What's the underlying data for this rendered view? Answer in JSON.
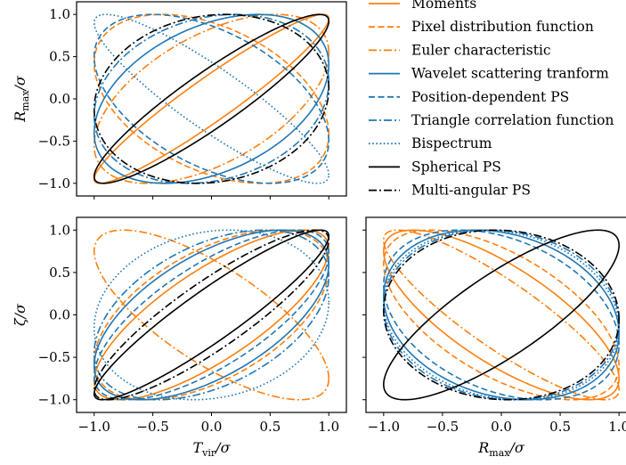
{
  "colors": {
    "orange": "#ff7f0e",
    "blue": "#1f77b4",
    "black": "#000000"
  },
  "legend": [
    {
      "label": "Moments",
      "color": "#ff7f0e",
      "dash": "solid"
    },
    {
      "label": "Pixel distribution function",
      "color": "#ff7f0e",
      "dash": "dashed"
    },
    {
      "label": "Euler characteristic",
      "color": "#ff7f0e",
      "dash": "dashdot"
    },
    {
      "label": "Wavelet scattering tranform",
      "color": "#1f77b4",
      "dash": "solid"
    },
    {
      "label": "Position-dependent PS",
      "color": "#1f77b4",
      "dash": "dashed"
    },
    {
      "label": "Triangle correlation function",
      "color": "#1f77b4",
      "dash": "dashdot"
    },
    {
      "label": "Bispectrum",
      "color": "#1f77b4",
      "dash": "dotted"
    },
    {
      "label": "Spherical PS",
      "color": "#000000",
      "dash": "solid"
    },
    {
      "label": "Multi-angular PS",
      "color": "#000000",
      "dash": "dashdot"
    }
  ],
  "chart_data": [
    {
      "type": "line",
      "panel": "top-left",
      "xlabel": "",
      "ylabel_main": "R",
      "ylabel_sub": "max",
      "ylabel_tail": "/σ",
      "xlim": [
        -1.15,
        1.15
      ],
      "ylim": [
        -1.15,
        1.15
      ],
      "xticks": [
        -1.0,
        -0.5,
        0.0,
        0.5,
        1.0
      ],
      "yticks": [
        1.0,
        0.5,
        0.0,
        -0.5,
        -1.0
      ],
      "ytick_labels": [
        "1.0",
        "0.5",
        "0.0",
        "−0.5",
        "−1.0"
      ],
      "show_xticklabels": false,
      "series_correlations": [
        {
          "name": "Moments",
          "rho": 0.95
        },
        {
          "name": "Pixel distribution function",
          "rho": -0.42
        },
        {
          "name": "Euler characteristic",
          "rho": 0.55
        },
        {
          "name": "Wavelet scattering tranform",
          "rho": 0.4
        },
        {
          "name": "Position-dependent PS",
          "rho": -0.5
        },
        {
          "name": "Triangle correlation function",
          "rho": 0.2
        },
        {
          "name": "Bispectrum",
          "rho": -0.9
        },
        {
          "name": "Spherical PS",
          "rho": 0.92
        },
        {
          "name": "Multi-angular PS",
          "rho": 0.12
        }
      ]
    },
    {
      "type": "line",
      "panel": "bottom-left",
      "xlabel_main": "T",
      "xlabel_sub": "vir",
      "xlabel_tail": "/σ",
      "ylabel_main": "ζ",
      "ylabel_sub": "",
      "ylabel_tail": "/σ",
      "xlim": [
        -1.15,
        1.15
      ],
      "ylim": [
        -1.15,
        1.15
      ],
      "xticks": [
        -1.0,
        -0.5,
        0.0,
        0.5,
        1.0
      ],
      "xtick_labels": [
        "−1.0",
        "−0.5",
        "0.0",
        "0.5",
        "1.0"
      ],
      "yticks": [
        1.0,
        0.5,
        0.0,
        -0.5,
        -1.0
      ],
      "ytick_labels": [
        "1.0",
        "0.5",
        "0.0",
        "−0.5",
        "−1.0"
      ],
      "show_xticklabels": true,
      "series_correlations": [
        {
          "name": "Moments",
          "rho": 0.78
        },
        {
          "name": "Pixel distribution function",
          "rho": 0.55
        },
        {
          "name": "Euler characteristic",
          "rho": -0.75
        },
        {
          "name": "Wavelet scattering tranform",
          "rho": 0.6
        },
        {
          "name": "Position-dependent PS",
          "rho": 0.72
        },
        {
          "name": "Triangle correlation function",
          "rho": 0.45
        },
        {
          "name": "Bispectrum",
          "rho": 0.15
        },
        {
          "name": "Spherical PS",
          "rho": 0.93
        },
        {
          "name": "Multi-angular PS",
          "rho": 0.88
        }
      ]
    },
    {
      "type": "line",
      "panel": "bottom-right",
      "xlabel_main": "R",
      "xlabel_sub": "max",
      "xlabel_tail": "/σ",
      "xlim": [
        -1.15,
        1.15
      ],
      "ylim": [
        -1.15,
        1.15
      ],
      "xticks": [
        -1.0,
        -0.5,
        0.0,
        0.5,
        1.0
      ],
      "xtick_labels": [
        "−1.0",
        "−0.5",
        "0.0",
        "0.5",
        "1.0"
      ],
      "yticks": [
        1.0,
        0.5,
        0.0,
        -0.5,
        -1.0
      ],
      "show_xticklabels": true,
      "show_yticklabels": false,
      "series_correlations": [
        {
          "name": "Moments",
          "rho": -0.75
        },
        {
          "name": "Pixel distribution function",
          "rho": -0.6
        },
        {
          "name": "Euler characteristic",
          "rho": -0.88
        },
        {
          "name": "Wavelet scattering tranform",
          "rho": -0.22
        },
        {
          "name": "Position-dependent PS",
          "rho": -0.35
        },
        {
          "name": "Triangle correlation function",
          "rho": -0.1
        },
        {
          "name": "Bispectrum",
          "rho": -0.15
        },
        {
          "name": "Spherical PS",
          "rho": 0.82
        },
        {
          "name": "Multi-angular PS",
          "rho": -0.05
        }
      ]
    }
  ]
}
